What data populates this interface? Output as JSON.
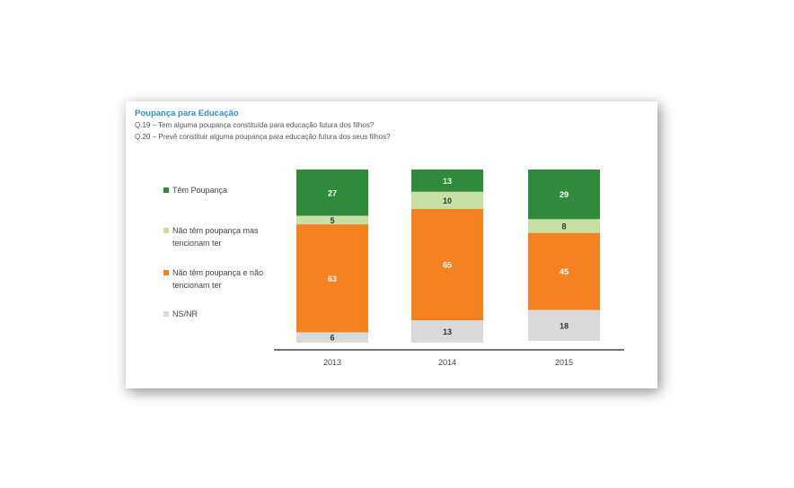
{
  "title": "Poupança para Educação",
  "questions": [
    "Q.19 – Tem alguma poupança constituída para educação futura dos filhos?",
    "Q.20 – Prevê constituir alguma poupança para educação futura dos seus filhos?"
  ],
  "colors": {
    "tem_poupanca": "#2e8b3a",
    "tencionam": "#c6e0a4",
    "nao_tencionam": "#f58220",
    "nsnr": "#d9d9d9",
    "title": "#2e8fc9"
  },
  "chart_data": {
    "type": "bar",
    "stacked": true,
    "percent": true,
    "categories": [
      "2013",
      "2014",
      "2015"
    ],
    "series": [
      {
        "name": "Têm Poupança",
        "values": [
          27,
          13,
          29
        ],
        "color": "#2e8b3a",
        "label_color": "#ffffff"
      },
      {
        "name": "Não têm poupança mas tencionam ter",
        "values": [
          5,
          10,
          8
        ],
        "color": "#c6e0a4",
        "label_color": "#333333"
      },
      {
        "name": "Não têm poupança e não tencionam ter",
        "values": [
          63,
          65,
          45
        ],
        "color": "#f58220",
        "label_color": "#ffffff"
      },
      {
        "name": "NS/NR",
        "values": [
          6,
          13,
          18
        ],
        "color": "#d9d9d9",
        "label_color": "#333333"
      }
    ],
    "ylim": [
      0,
      100
    ],
    "legend": [
      "Têm Poupança",
      "Não têm poupança mas tencionam ter",
      "Não têm poupança e não tencionam ter",
      "NS/NR"
    ]
  }
}
